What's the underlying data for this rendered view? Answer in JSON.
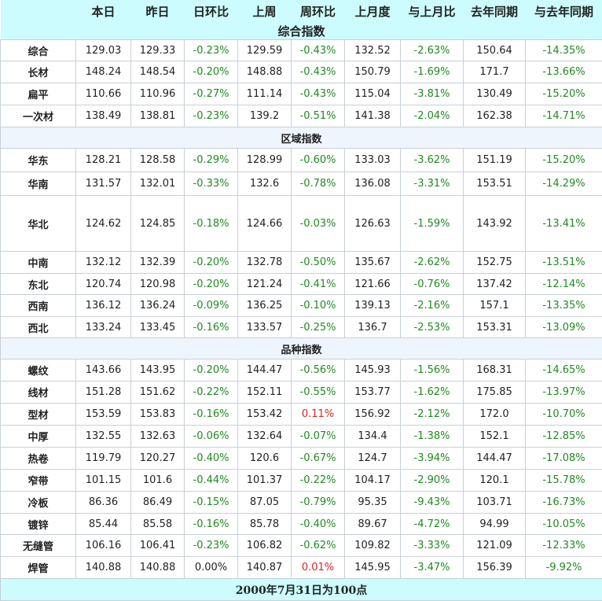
{
  "headers": [
    "",
    "本日",
    "昨日",
    "日环比",
    "上周",
    "周环比",
    "上月度",
    "与上月比",
    "去年同期",
    "与去年同期"
  ],
  "title": "综合指数",
  "colors": {
    "header_bg": "#ccfcfd",
    "section_bg": "#eef5fc",
    "up": "#e02020",
    "down": "#1f8a1f"
  },
  "groups": [
    {
      "rows": [
        {
          "name": "综合",
          "today": "129.03",
          "yesterday": "129.33",
          "dod": "-0.23%",
          "lastweek": "129.59",
          "wow": "-0.43%",
          "lastmonth": "132.52",
          "mom": "-2.63%",
          "lastyear": "150.64",
          "yoy": "-14.35%"
        },
        {
          "name": "长材",
          "today": "148.24",
          "yesterday": "148.54",
          "dod": "-0.20%",
          "lastweek": "148.88",
          "wow": "-0.43%",
          "lastmonth": "150.79",
          "mom": "-1.69%",
          "lastyear": "171.7",
          "yoy": "-13.66%"
        },
        {
          "name": "扁平",
          "today": "110.66",
          "yesterday": "110.96",
          "dod": "-0.27%",
          "lastweek": "111.14",
          "wow": "-0.43%",
          "lastmonth": "115.04",
          "mom": "-3.81%",
          "lastyear": "130.49",
          "yoy": "-15.20%"
        },
        {
          "name": "一次材",
          "today": "138.49",
          "yesterday": "138.81",
          "dod": "-0.23%",
          "lastweek": "139.2",
          "wow": "-0.51%",
          "lastmonth": "141.38",
          "mom": "-2.04%",
          "lastyear": "162.38",
          "yoy": "-14.71%"
        }
      ]
    },
    {
      "title": "区域指数",
      "rows": [
        {
          "name": "华东",
          "today": "128.21",
          "yesterday": "128.58",
          "dod": "-0.29%",
          "lastweek": "128.99",
          "wow": "-0.60%",
          "lastmonth": "133.03",
          "mom": "-3.62%",
          "lastyear": "151.19",
          "yoy": "-15.20%"
        },
        {
          "name": "华南",
          "today": "131.57",
          "yesterday": "132.01",
          "dod": "-0.33%",
          "lastweek": "132.6",
          "wow": "-0.78%",
          "lastmonth": "136.08",
          "mom": "-3.31%",
          "lastyear": "153.51",
          "yoy": "-14.29%"
        },
        {
          "name": "华北",
          "today": "124.62",
          "yesterday": "124.85",
          "dod": "-0.18%",
          "lastweek": "124.66",
          "wow": "-0.03%",
          "lastmonth": "126.63",
          "mom": "-1.59%",
          "lastyear": "143.92",
          "yoy": "-13.41%"
        },
        {
          "name": "中南",
          "today": "132.12",
          "yesterday": "132.39",
          "dod": "-0.20%",
          "lastweek": "132.78",
          "wow": "-0.50%",
          "lastmonth": "135.67",
          "mom": "-2.62%",
          "lastyear": "152.75",
          "yoy": "-13.51%"
        },
        {
          "name": "东北",
          "today": "120.74",
          "yesterday": "120.98",
          "dod": "-0.20%",
          "lastweek": "121.24",
          "wow": "-0.41%",
          "lastmonth": "121.66",
          "mom": "-0.76%",
          "lastyear": "137.42",
          "yoy": "-12.14%"
        },
        {
          "name": "西南",
          "today": "136.12",
          "yesterday": "136.24",
          "dod": "-0.09%",
          "lastweek": "136.25",
          "wow": "-0.10%",
          "lastmonth": "139.13",
          "mom": "-2.16%",
          "lastyear": "157.1",
          "yoy": "-13.35%"
        },
        {
          "name": "西北",
          "today": "133.24",
          "yesterday": "133.45",
          "dod": "-0.16%",
          "lastweek": "133.57",
          "wow": "-0.25%",
          "lastmonth": "136.7",
          "mom": "-2.53%",
          "lastyear": "153.31",
          "yoy": "-13.09%"
        }
      ]
    },
    {
      "title": "品种指数",
      "rows": [
        {
          "name": "螺纹",
          "today": "143.66",
          "yesterday": "143.95",
          "dod": "-0.20%",
          "lastweek": "144.47",
          "wow": "-0.56%",
          "lastmonth": "145.93",
          "mom": "-1.56%",
          "lastyear": "168.31",
          "yoy": "-14.65%"
        },
        {
          "name": "线材",
          "today": "151.28",
          "yesterday": "151.62",
          "dod": "-0.22%",
          "lastweek": "152.11",
          "wow": "-0.55%",
          "lastmonth": "153.77",
          "mom": "-1.62%",
          "lastyear": "175.85",
          "yoy": "-13.97%"
        },
        {
          "name": "型材",
          "today": "153.59",
          "yesterday": "153.83",
          "dod": "-0.16%",
          "lastweek": "153.42",
          "wow": "0.11%",
          "lastmonth": "156.92",
          "mom": "-2.12%",
          "lastyear": "172.0",
          "yoy": "-10.70%"
        },
        {
          "name": "中厚",
          "today": "132.55",
          "yesterday": "132.63",
          "dod": "-0.06%",
          "lastweek": "132.64",
          "wow": "-0.07%",
          "lastmonth": "134.4",
          "mom": "-1.38%",
          "lastyear": "152.1",
          "yoy": "-12.85%"
        },
        {
          "name": "热卷",
          "today": "119.79",
          "yesterday": "120.27",
          "dod": "-0.40%",
          "lastweek": "120.6",
          "wow": "-0.67%",
          "lastmonth": "124.7",
          "mom": "-3.94%",
          "lastyear": "144.47",
          "yoy": "-17.08%"
        },
        {
          "name": "窄带",
          "today": "101.15",
          "yesterday": "101.6",
          "dod": "-0.44%",
          "lastweek": "101.37",
          "wow": "-0.22%",
          "lastmonth": "104.17",
          "mom": "-2.90%",
          "lastyear": "120.1",
          "yoy": "-15.78%"
        },
        {
          "name": "冷板",
          "today": "86.36",
          "yesterday": "86.49",
          "dod": "-0.15%",
          "lastweek": "87.05",
          "wow": "-0.79%",
          "lastmonth": "95.35",
          "mom": "-9.43%",
          "lastyear": "103.71",
          "yoy": "-16.73%"
        },
        {
          "name": "镀锌",
          "today": "85.44",
          "yesterday": "85.58",
          "dod": "-0.16%",
          "lastweek": "85.78",
          "wow": "-0.40%",
          "lastmonth": "89.67",
          "mom": "-4.72%",
          "lastyear": "94.99",
          "yoy": "-10.05%"
        },
        {
          "name": "无缝管",
          "today": "106.16",
          "yesterday": "106.41",
          "dod": "-0.23%",
          "lastweek": "106.82",
          "wow": "-0.62%",
          "lastmonth": "109.82",
          "mom": "-3.33%",
          "lastyear": "121.09",
          "yoy": "-12.33%"
        },
        {
          "name": "焊管",
          "today": "140.88",
          "yesterday": "140.88",
          "dod": "0.00%",
          "lastweek": "140.87",
          "wow": "0.01%",
          "lastmonth": "145.95",
          "mom": "-3.47%",
          "lastyear": "156.39",
          "yoy": "-9.92%"
        }
      ]
    }
  ],
  "footer": "2000年7月31日为100点"
}
